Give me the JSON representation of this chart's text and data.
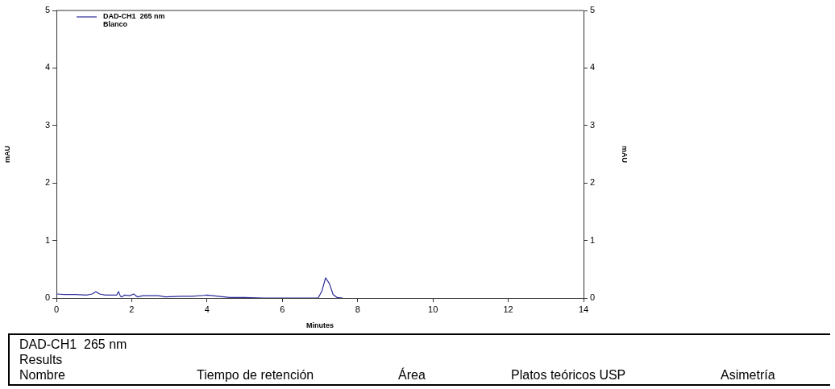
{
  "chart_data": {
    "type": "line",
    "xlabel": "Minutes",
    "ylabel": "mAU",
    "y2label": "mAU",
    "legend_title": "DAD-CH1  265 nm",
    "legend": "top left",
    "grid": false,
    "marker": "none",
    "line_style": "solid",
    "xlim": [
      0,
      14
    ],
    "xticks": [
      0,
      2,
      4,
      6,
      8,
      10,
      12,
      14
    ],
    "ylim": [
      0,
      5
    ],
    "yticks": [
      0,
      1,
      2,
      3,
      4,
      5
    ],
    "y2lim": [
      0,
      5
    ],
    "y2ticks": [
      0,
      1,
      2,
      3,
      4,
      5
    ],
    "series": [
      {
        "name": "Blanco",
        "color": "#2b2b9a",
        "x": [
          0,
          0.2,
          0.5,
          0.8,
          0.95,
          1.05,
          1.15,
          1.3,
          1.6,
          1.65,
          1.7,
          1.75,
          1.8,
          1.95,
          2.05,
          2.15,
          2.3,
          2.7,
          2.9,
          3.3,
          3.6,
          4.0,
          4.3,
          4.6,
          5.0,
          5.5,
          6.5,
          6.95,
          7.05,
          7.15,
          7.25,
          7.35,
          7.45,
          7.6
        ],
        "values": [
          0.07,
          0.06,
          0.06,
          0.05,
          0.07,
          0.11,
          0.07,
          0.05,
          0.05,
          0.11,
          0.03,
          0.02,
          0.05,
          0.04,
          0.07,
          0.02,
          0.04,
          0.04,
          0.02,
          0.03,
          0.03,
          0.05,
          0.03,
          0.01,
          0.01,
          0,
          0,
          0,
          0.12,
          0.35,
          0.25,
          0.06,
          0.01,
          0
        ]
      }
    ],
    "annotations": [
      "DAD-CH1  265 nm",
      "Results",
      "Nombre",
      "Tiempo de retención",
      "Área",
      "Platos teóricos USP",
      "Asimetría"
    ]
  }
}
